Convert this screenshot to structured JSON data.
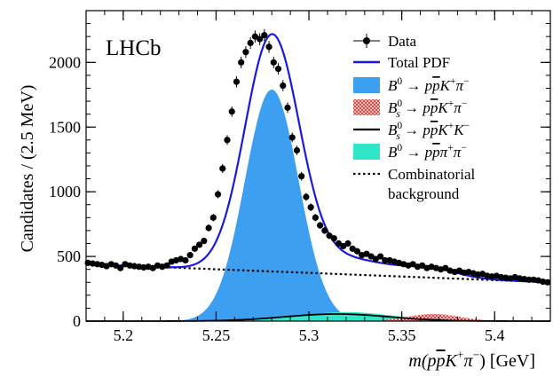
{
  "chart_data": {
    "type": "line",
    "experiment_label": "LHCb",
    "xlabel_parts": [
      {
        "t": "m(p",
        "it": true
      },
      {
        "t": "p",
        "it": true,
        "bar": true
      },
      {
        "t": "K",
        "it": true
      },
      {
        "t": "+",
        "sup": true
      },
      {
        "t": "π",
        "it": true
      },
      {
        "t": "−",
        "sup": true
      },
      {
        "t": ") [GeV]",
        "it": false
      }
    ],
    "ylabel": "Candidates / (2.5 MeV)",
    "xlim": [
      5.18,
      5.43
    ],
    "ylim": [
      0,
      2400
    ],
    "x_ticks": [
      5.2,
      5.25,
      5.3,
      5.35,
      5.4
    ],
    "x_tick_labels": [
      "5.2",
      "5.25",
      "5.3",
      "5.35",
      "5.4"
    ],
    "y_ticks": [
      0,
      500,
      1000,
      1500,
      2000
    ],
    "y_tick_labels": [
      "0",
      "500",
      "1000",
      "1500",
      "2000"
    ],
    "legend_position": "top-right",
    "legend": [
      {
        "key": "data",
        "parts": [
          {
            "t": "Data"
          }
        ]
      },
      {
        "key": "total",
        "parts": [
          {
            "t": "Total PDF"
          }
        ]
      },
      {
        "key": "b0kpi",
        "parts": [
          {
            "t": "B",
            "it": true
          },
          {
            "t": "0",
            "sup": true
          },
          {
            "t": " → "
          },
          {
            "t": "p",
            "it": true
          },
          {
            "t": "p",
            "it": true,
            "bar": true
          },
          {
            "t": "K",
            "it": true
          },
          {
            "t": "+",
            "sup": true
          },
          {
            "t": "π",
            "it": true
          },
          {
            "t": "−",
            "sup": true
          }
        ]
      },
      {
        "key": "bskpi",
        "parts": [
          {
            "t": "B",
            "it": true
          },
          {
            "t": "0",
            "sup": true,
            "subs": "s"
          },
          {
            "t": " → "
          },
          {
            "t": "p",
            "it": true
          },
          {
            "t": "p",
            "it": true,
            "bar": true
          },
          {
            "t": "K",
            "it": true
          },
          {
            "t": "+",
            "sup": true
          },
          {
            "t": "π",
            "it": true
          },
          {
            "t": "−",
            "sup": true
          }
        ]
      },
      {
        "key": "bskk",
        "parts": [
          {
            "t": "B",
            "it": true
          },
          {
            "t": "0",
            "sup": true,
            "subs": "s"
          },
          {
            "t": " → "
          },
          {
            "t": "p",
            "it": true
          },
          {
            "t": "p",
            "it": true,
            "bar": true
          },
          {
            "t": "K",
            "it": true
          },
          {
            "t": "+",
            "sup": true
          },
          {
            "t": "K",
            "it": true
          },
          {
            "t": "−",
            "sup": true
          }
        ]
      },
      {
        "key": "b0pipi",
        "parts": [
          {
            "t": "B",
            "it": true
          },
          {
            "t": "0",
            "sup": true
          },
          {
            "t": " → "
          },
          {
            "t": "p",
            "it": true
          },
          {
            "t": "p",
            "it": true,
            "bar": true
          },
          {
            "t": "π",
            "it": true
          },
          {
            "t": "+",
            "sup": true
          },
          {
            "t": "π",
            "it": true
          },
          {
            "t": "−",
            "sup": true
          }
        ]
      },
      {
        "key": "comb",
        "parts": [
          {
            "t": "Combinatorial"
          }
        ],
        "line2": "background"
      }
    ],
    "colors": {
      "data": "#000000",
      "total": "#1a1adc",
      "b0kpi": "#3d9ff0",
      "bskpi": "#e53935",
      "bskk": "#000000",
      "b0pipi": "#2ee6c8",
      "comb": "#000000"
    },
    "components": {
      "b0kpi": {
        "shape": "gaussian",
        "mean": 5.28,
        "sigma": 0.0145,
        "peak": 1790
      },
      "bskpi": {
        "shape": "gaussian",
        "mean": 5.367,
        "sigma": 0.014,
        "peak": 55
      },
      "bskk": {
        "shape": "gaussian",
        "mean": 5.315,
        "sigma": 0.028,
        "peak": 55
      },
      "b0pipi": {
        "shape": "gaussian",
        "mean": 5.32,
        "sigma": 0.025,
        "peak": 70
      },
      "comb": {
        "shape": "linear",
        "y_at_xmin": 440,
        "y_at_xmax": 300
      }
    },
    "series": [
      {
        "name": "Data",
        "x": [
          5.181,
          5.1835,
          5.186,
          5.1885,
          5.191,
          5.1935,
          5.196,
          5.1985,
          5.201,
          5.2035,
          5.206,
          5.2085,
          5.211,
          5.2135,
          5.216,
          5.2185,
          5.221,
          5.2235,
          5.226,
          5.2285,
          5.231,
          5.2335,
          5.236,
          5.2385,
          5.241,
          5.2435,
          5.246,
          5.2485,
          5.251,
          5.2535,
          5.256,
          5.2585,
          5.261,
          5.2635,
          5.266,
          5.2685,
          5.271,
          5.2735,
          5.276,
          5.2785,
          5.281,
          5.2835,
          5.286,
          5.2885,
          5.291,
          5.2935,
          5.296,
          5.2985,
          5.301,
          5.3035,
          5.306,
          5.3085,
          5.311,
          5.3135,
          5.316,
          5.3185,
          5.321,
          5.3235,
          5.326,
          5.3285,
          5.331,
          5.3335,
          5.336,
          5.3385,
          5.341,
          5.3435,
          5.346,
          5.3485,
          5.351,
          5.3535,
          5.356,
          5.3585,
          5.361,
          5.3635,
          5.366,
          5.3685,
          5.371,
          5.3735,
          5.376,
          5.3785,
          5.381,
          5.3835,
          5.386,
          5.3885,
          5.391,
          5.3935,
          5.396,
          5.3985,
          5.401,
          5.4035,
          5.406,
          5.4085,
          5.411,
          5.4135,
          5.416,
          5.4185,
          5.421,
          5.4235,
          5.426,
          5.4285
        ],
        "y": [
          450,
          445,
          440,
          435,
          425,
          440,
          430,
          410,
          440,
          430,
          425,
          420,
          415,
          420,
          410,
          430,
          420,
          430,
          460,
          470,
          480,
          470,
          510,
          560,
          590,
          620,
          720,
          800,
          980,
          1180,
          1400,
          1620,
          1850,
          2000,
          2080,
          2150,
          2200,
          2180,
          2210,
          2120,
          2000,
          1950,
          1820,
          1650,
          1420,
          1320,
          1120,
          960,
          880,
          800,
          740,
          700,
          660,
          640,
          600,
          580,
          600,
          560,
          540,
          510,
          520,
          500,
          480,
          500,
          470,
          470,
          460,
          450,
          440,
          430,
          440,
          420,
          430,
          410,
          420,
          410,
          400,
          410,
          390,
          380,
          390,
          375,
          380,
          370,
          360,
          365,
          350,
          345,
          350,
          340,
          335,
          330,
          340,
          330,
          325,
          320,
          320,
          315,
          305,
          300
        ]
      }
    ]
  }
}
